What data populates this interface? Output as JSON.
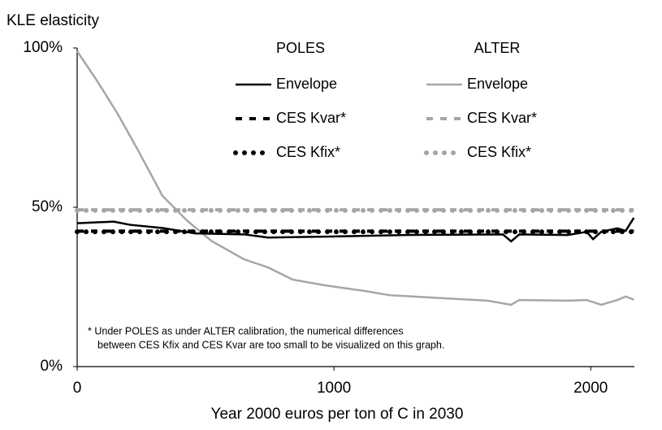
{
  "chart_data": {
    "type": "line",
    "y_axis_title": "KLE elasticity",
    "x_axis_title": "Year 2000 euros per ton of C in 2030",
    "legend_groups": [
      "POLES",
      "ALTER"
    ],
    "annotation": [
      "* Under POLES as under ALTER calibration, the numerical differences",
      "between CES Kfix and CES Kvar are too small to be visualized on this graph."
    ],
    "xlim": [
      0,
      2170
    ],
    "ylim": [
      0,
      100
    ],
    "xticks": [
      0,
      1000,
      2000
    ],
    "yticks": [
      {
        "value": 0,
        "label": "0%"
      },
      {
        "value": 50,
        "label": "50%"
      },
      {
        "value": 100,
        "label": "100%"
      }
    ],
    "series": [
      {
        "name": "Envelope",
        "color": "#000000",
        "style": "solid",
        "x": [
          0,
          142,
          206,
          332,
          459,
          649,
          744,
          965,
          1281,
          1658,
          1690,
          1722,
          1911,
          1984,
          2009,
          2041,
          2104,
          2136,
          2168
        ],
        "values": [
          45,
          45.5,
          44.5,
          43.5,
          41.8,
          41.5,
          40.5,
          40.8,
          41.3,
          41.5,
          39.3,
          41.5,
          41.3,
          42.3,
          40,
          42.3,
          43.4,
          42.6,
          46.7
        ]
      },
      {
        "name": "CES Kvar*",
        "color": "#000000",
        "style": "dashed",
        "x": [
          0,
          2168
        ],
        "values": [
          42.5,
          42.5
        ]
      },
      {
        "name": "CES Kfix*",
        "color": "#000000",
        "style": "dotted",
        "x": [
          0,
          2168
        ],
        "values": [
          42.3,
          42.3
        ]
      },
      {
        "name": "Envelope",
        "color": "#a6a6a6",
        "style": "solid",
        "x": [
          0,
          79,
          158,
          237,
          332,
          427,
          522,
          649,
          744,
          839,
          965,
          1123,
          1218,
          1440,
          1598,
          1690,
          1722,
          1911,
          1984,
          2041,
          2104,
          2136,
          2168
        ],
        "values": [
          99,
          89.5,
          79.3,
          67.9,
          53.6,
          45.9,
          39.5,
          33.7,
          31.1,
          27.3,
          25.5,
          23.7,
          22.4,
          21.4,
          20.7,
          19.4,
          20.9,
          20.7,
          20.9,
          19.4,
          20.9,
          22,
          21
        ]
      },
      {
        "name": "CES Kvar*",
        "color": "#a6a6a6",
        "style": "dashed",
        "x": [
          0,
          2168
        ],
        "values": [
          49.2,
          49.2
        ]
      },
      {
        "name": "CES Kfix*",
        "color": "#a6a6a6",
        "style": "dotted",
        "x": [
          0,
          2168
        ],
        "values": [
          49,
          49
        ]
      }
    ]
  }
}
